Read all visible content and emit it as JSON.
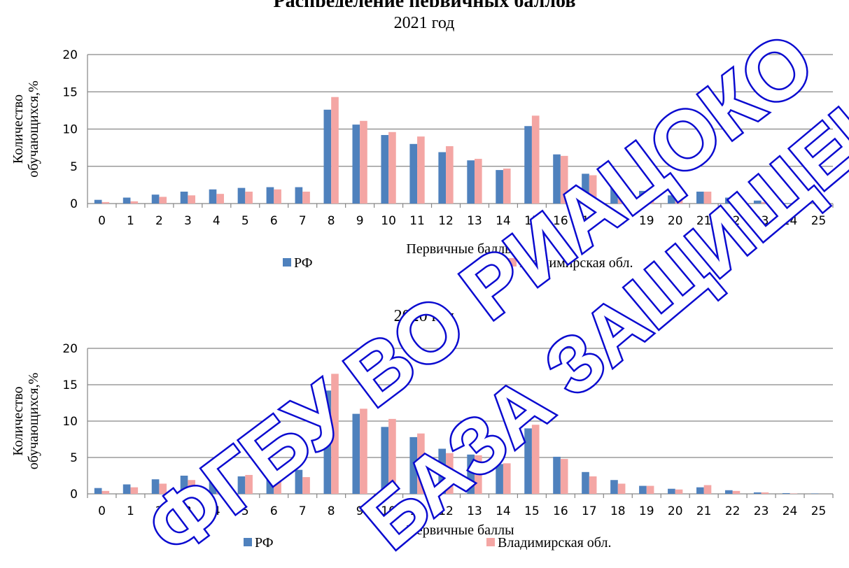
{
  "header": {
    "title": "Распределение первичных баллов"
  },
  "colors": {
    "rf": "#4f81bd",
    "region": "#f4a6a4",
    "grid": "#868686",
    "watermark": "#0a0ad0"
  },
  "chart_data": [
    {
      "type": "bar",
      "title": "2021 год",
      "xlabel": "Первичные баллы",
      "ylabel_lines": [
        "Количество",
        "обучающихся,%"
      ],
      "ylim": [
        0,
        20
      ],
      "yticks": [
        0,
        5,
        10,
        15,
        20
      ],
      "grid": true,
      "legend_position": "bottom",
      "categories": [
        "0",
        "1",
        "2",
        "3",
        "4",
        "5",
        "6",
        "7",
        "8",
        "9",
        "10",
        "11",
        "12",
        "13",
        "14",
        "15",
        "16",
        "17",
        "18",
        "19",
        "20",
        "21",
        "22",
        "23",
        "24",
        "25"
      ],
      "series": [
        {
          "name": "РФ",
          "values": [
            0.5,
            0.8,
            1.2,
            1.6,
            1.9,
            2.1,
            2.2,
            2.2,
            12.6,
            10.6,
            9.2,
            8.0,
            6.9,
            5.8,
            4.5,
            10.4,
            6.6,
            4.0,
            2.7,
            1.7,
            1.1,
            1.6,
            0.8,
            0.4,
            0.05,
            0.0
          ]
        },
        {
          "name": "Владимирская обл.",
          "values": [
            0.2,
            0.3,
            0.9,
            1.1,
            1.3,
            1.6,
            1.9,
            1.6,
            14.3,
            11.1,
            9.6,
            9.0,
            7.7,
            6.0,
            4.7,
            11.8,
            6.4,
            3.8,
            2.1,
            1.4,
            0.8,
            1.6,
            0.6,
            0.2,
            0.0,
            0.0
          ]
        }
      ]
    },
    {
      "type": "bar",
      "title": "2020 год",
      "xlabel": "Первичные баллы",
      "ylabel_lines": [
        "Количество",
        "обучающихся,%"
      ],
      "ylim": [
        0,
        20
      ],
      "yticks": [
        0,
        5,
        10,
        15,
        20
      ],
      "grid": true,
      "legend_position": "bottom",
      "categories": [
        "0",
        "1",
        "2",
        "3",
        "4",
        "5",
        "6",
        "7",
        "8",
        "9",
        "10",
        "11",
        "12",
        "13",
        "14",
        "15",
        "16",
        "17",
        "18",
        "19",
        "20",
        "21",
        "22",
        "23",
        "24",
        "25"
      ],
      "series": [
        {
          "name": "РФ",
          "values": [
            0.8,
            1.3,
            2.0,
            2.5,
            3.0,
            2.4,
            2.8,
            3.3,
            14.2,
            11.0,
            9.2,
            7.8,
            6.2,
            5.4,
            4.1,
            9.0,
            5.1,
            3.0,
            1.9,
            1.1,
            0.7,
            0.9,
            0.5,
            0.2,
            0.1,
            0.05
          ]
        },
        {
          "name": "Владимирская обл.",
          "values": [
            0.4,
            0.9,
            1.4,
            1.9,
            2.6,
            2.6,
            2.6,
            2.3,
            16.5,
            11.7,
            10.3,
            8.3,
            5.6,
            5.3,
            4.2,
            9.5,
            4.8,
            2.4,
            1.4,
            1.1,
            0.6,
            1.2,
            0.4,
            0.2,
            0.05,
            0.0
          ]
        }
      ]
    }
  ],
  "watermark": {
    "lines": [
      "ФГБУ ВО РИАЦОКО",
      "БАЗА ЗАЩИЩЕНЫ"
    ]
  }
}
